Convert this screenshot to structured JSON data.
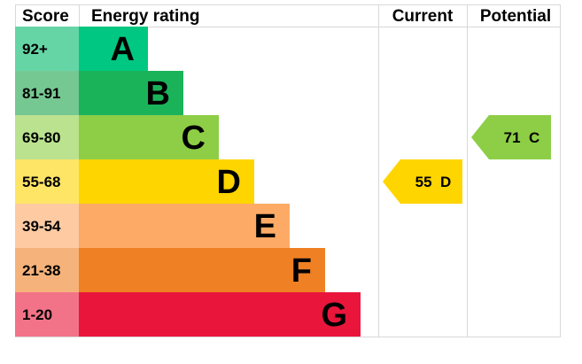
{
  "chart_data": {
    "type": "epc_rating",
    "headers": {
      "score": "Score",
      "energy_rating": "Energy rating",
      "current": "Current",
      "potential": "Potential"
    },
    "bands": [
      {
        "score": "92+",
        "letter": "A",
        "bar_color": "#00c781",
        "score_bg": "#66d5a6"
      },
      {
        "score": "81-91",
        "letter": "B",
        "bar_color": "#1bb35a",
        "score_bg": "#76c893"
      },
      {
        "score": "69-80",
        "letter": "C",
        "bar_color": "#8dce46",
        "score_bg": "#bbe28f"
      },
      {
        "score": "55-68",
        "letter": "D",
        "bar_color": "#ffd500",
        "score_bg": "#ffe566"
      },
      {
        "score": "39-54",
        "letter": "E",
        "bar_color": "#fcaa65",
        "score_bg": "#fdcaa2"
      },
      {
        "score": "21-38",
        "letter": "F",
        "bar_color": "#ef8023",
        "score_bg": "#f5b37b"
      },
      {
        "score": "1-20",
        "letter": "G",
        "bar_color": "#e9153b",
        "score_bg": "#f27388"
      }
    ],
    "current": {
      "value": 55,
      "letter": "D",
      "label": "55  D",
      "color": "#ffd500"
    },
    "potential": {
      "value": 71,
      "letter": "C",
      "label": "71  C",
      "color": "#8dce46"
    }
  }
}
